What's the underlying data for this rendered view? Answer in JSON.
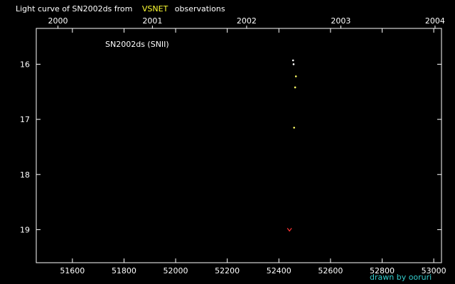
{
  "chart_data": {
    "type": "scatter",
    "title": {
      "prefix": "Light curve of SN2002ds from",
      "highlight": "VSNET",
      "suffix": "observations"
    },
    "annotation": "SN2002ds (SNII)",
    "credit": "drawn by ooruri",
    "xlabel": "",
    "ylabel": "",
    "x_axis": {
      "label": "",
      "range": [
        51460,
        53030
      ],
      "ticks": [
        51600,
        51800,
        52000,
        52200,
        52400,
        52600,
        52800,
        53000
      ],
      "tick_labels": [
        "51600",
        "51800",
        "52000",
        "52200",
        "52400",
        "52600",
        "52800",
        "53000"
      ]
    },
    "x2_axis": {
      "label": "",
      "ticks": [
        51544,
        51910,
        52275,
        52640,
        53005
      ],
      "tick_labels": [
        "2000",
        "2001",
        "2002",
        "2003",
        "2004"
      ]
    },
    "y_axis": {
      "label": "",
      "inverted": true,
      "range": [
        15.35,
        19.6
      ],
      "ticks": [
        16,
        17,
        18,
        19
      ],
      "tick_labels": [
        "16",
        "17",
        "18",
        "19"
      ]
    },
    "grid": false,
    "colors": {
      "background": "#000000",
      "axis": "#ffffff",
      "text": "#ffffff",
      "title_highlight": "#ffff33",
      "credit": "#33cccc"
    },
    "series": [
      {
        "marker": "point",
        "color": "#ffffff",
        "points": [
          {
            "x": 52455,
            "y": 15.93
          },
          {
            "x": 52457,
            "y": 16.0
          }
        ]
      },
      {
        "marker": "point",
        "color": "#ffff66",
        "points": [
          {
            "x": 52466,
            "y": 16.22
          },
          {
            "x": 52463,
            "y": 16.42
          },
          {
            "x": 52459,
            "y": 17.15
          }
        ]
      },
      {
        "marker": "upper-limit",
        "color": "#ff3333",
        "points": [
          {
            "x": 52441,
            "y": 19.0
          }
        ]
      }
    ]
  }
}
